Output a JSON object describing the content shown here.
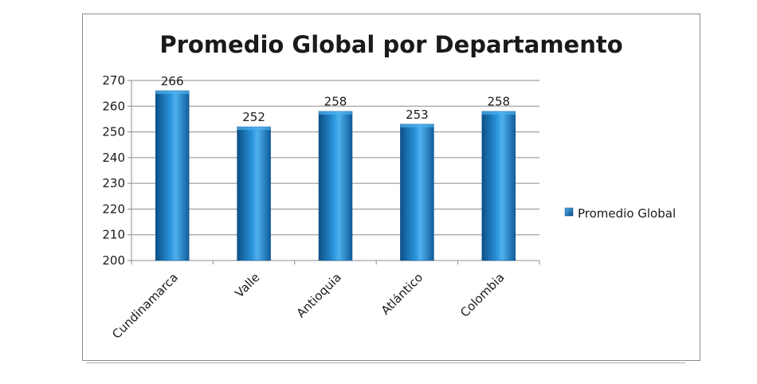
{
  "chart_data": {
    "type": "bar",
    "title": "Promedio Global por Departamento",
    "categories": [
      "Cundinamarca",
      "Valle",
      "Antioquia",
      "Atlántico",
      "Colombia"
    ],
    "series": [
      {
        "name": "Promedio Global",
        "values": [
          266,
          252,
          258,
          253,
          258
        ]
      }
    ],
    "data_labels": [
      "266",
      "252",
      "258",
      "253",
      "258"
    ],
    "y_ticks": [
      "200",
      "210",
      "220",
      "230",
      "240",
      "250",
      "260",
      "270"
    ],
    "ylim": [
      200,
      270
    ],
    "grid": true,
    "legend": "right",
    "colors": {
      "bar": "#1a7fc8",
      "bar_dark": "#0d4f86",
      "bar_light": "#4fb0ee",
      "grid": "#8c8c8c"
    }
  }
}
